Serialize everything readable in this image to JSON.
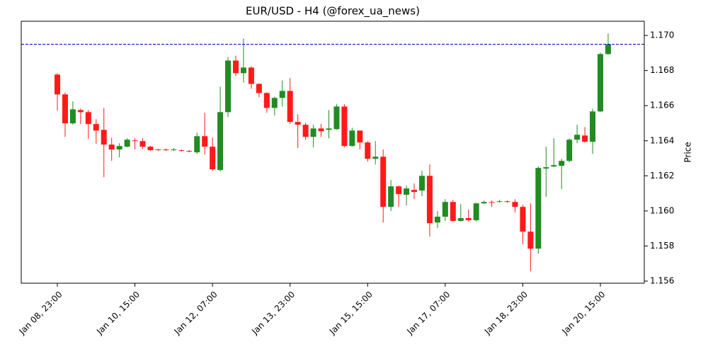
{
  "chart_data": {
    "type": "candlestick",
    "title": "EUR/USD - H4 (@forex_ua_news)",
    "ylabel": "Price",
    "y_axis_side": "right",
    "categories": [
      "Jan 08, 23:00",
      null,
      null,
      null,
      null,
      null,
      null,
      null,
      null,
      null,
      "Jan 10, 15:00",
      null,
      null,
      null,
      null,
      null,
      null,
      null,
      null,
      null,
      "Jan 12, 07:00",
      null,
      null,
      null,
      null,
      null,
      null,
      null,
      null,
      null,
      "Jan 13, 23:00",
      null,
      null,
      null,
      null,
      null,
      null,
      null,
      null,
      null,
      "Jan 15, 15:00",
      null,
      null,
      null,
      null,
      null,
      null,
      null,
      null,
      null,
      "Jan 17, 07:00",
      null,
      null,
      null,
      null,
      null,
      null,
      null,
      null,
      null,
      "Jan 18, 23:00",
      null,
      null,
      null,
      null,
      null,
      null,
      null,
      null,
      null,
      "Jan 20, 15:00",
      null
    ],
    "open": [
      1.16777,
      1.16664,
      1.16499,
      1.16575,
      1.16563,
      1.16495,
      1.16462,
      1.16378,
      1.1635,
      1.16366,
      1.16402,
      1.16398,
      1.16366,
      1.1635,
      1.1635,
      1.16346,
      1.16346,
      1.16342,
      1.16334,
      1.16426,
      1.16366,
      1.16233,
      1.16563,
      1.16857,
      1.16785,
      1.16817,
      1.16724,
      1.16672,
      1.16587,
      1.16644,
      1.16684,
      1.16507,
      1.16491,
      1.16422,
      1.1647,
      1.16462,
      1.16466,
      1.16595,
      1.1637,
      1.16458,
      1.1639,
      1.16297,
      1.16309,
      1.16023,
      1.1614,
      1.16092,
      1.1612,
      1.16116,
      1.162,
      1.15934,
      1.15967,
      1.16051,
      1.15943,
      1.15959,
      1.15947,
      1.16043,
      1.16051,
      1.16051,
      1.16055,
      1.16051,
      1.16023,
      1.15882,
      1.15785,
      1.16241,
      1.16253,
      1.16257,
      1.16285,
      1.16406,
      1.1643,
      1.16394,
      1.16567,
      1.16894
    ],
    "high": [
      1.16785,
      1.16676,
      1.16624,
      1.16583,
      1.16575,
      1.16523,
      1.16587,
      1.16418,
      1.16386,
      1.16414,
      1.16414,
      1.16414,
      1.1637,
      1.16354,
      1.16354,
      1.16358,
      1.1635,
      1.16346,
      1.16446,
      1.16559,
      1.16418,
      1.16708,
      1.16877,
      1.16885,
      1.16982,
      1.16825,
      1.16728,
      1.16676,
      1.16652,
      1.16744,
      1.16757,
      1.16551,
      1.16503,
      1.16491,
      1.16495,
      1.16575,
      1.16608,
      1.16608,
      1.16474,
      1.16458,
      1.16398,
      1.16398,
      1.1635,
      1.16176,
      1.16144,
      1.16144,
      1.16156,
      1.16229,
      1.16265,
      1.15999,
      1.16067,
      1.16063,
      1.16039,
      1.16007,
      1.16047,
      1.16059,
      1.16059,
      1.16063,
      1.16059,
      1.16067,
      1.16035,
      1.16043,
      1.16253,
      1.16366,
      1.16414,
      1.16297,
      1.16414,
      1.16491,
      1.16478,
      1.16583,
      1.16902,
      1.17011
    ],
    "low": [
      1.16571,
      1.16422,
      1.16491,
      1.16495,
      1.1641,
      1.16382,
      1.16192,
      1.16285,
      1.16305,
      1.16362,
      1.1635,
      1.16354,
      1.16342,
      1.16342,
      1.16342,
      1.16342,
      1.16338,
      1.16334,
      1.16325,
      1.16321,
      1.16229,
      1.16225,
      1.16535,
      1.16769,
      1.16732,
      1.16696,
      1.16648,
      1.16559,
      1.16543,
      1.16595,
      1.16495,
      1.16358,
      1.16406,
      1.16362,
      1.16422,
      1.16414,
      1.16462,
      1.16362,
      1.16366,
      1.1635,
      1.16281,
      1.16265,
      1.15934,
      1.15999,
      1.16023,
      1.16031,
      1.16067,
      1.16084,
      1.15854,
      1.15902,
      1.15943,
      1.15939,
      1.15939,
      1.15939,
      1.15939,
      1.16039,
      1.16023,
      1.16047,
      1.16047,
      1.15991,
      1.1581,
      1.15656,
      1.15757,
      1.1608,
      1.16249,
      1.16124,
      1.16277,
      1.16386,
      1.1639,
      1.16325,
      1.16563,
      1.1689
    ],
    "close": [
      1.16664,
      1.16499,
      1.16579,
      1.16563,
      1.16495,
      1.16458,
      1.16378,
      1.1635,
      1.1637,
      1.16406,
      1.16398,
      1.16366,
      1.16346,
      1.16346,
      1.16346,
      1.1635,
      1.16342,
      1.16338,
      1.16426,
      1.16366,
      1.16237,
      1.16563,
      1.16857,
      1.16785,
      1.16817,
      1.16724,
      1.16672,
      1.16587,
      1.16644,
      1.16684,
      1.16507,
      1.16491,
      1.16422,
      1.1647,
      1.16454,
      1.1647,
      1.16595,
      1.1637,
      1.16458,
      1.1639,
      1.16297,
      1.16309,
      1.16023,
      1.1614,
      1.16096,
      1.16128,
      1.16108,
      1.162,
      1.1593,
      1.15967,
      1.16051,
      1.15943,
      1.15959,
      1.15947,
      1.16043,
      1.16051,
      1.16047,
      1.16055,
      1.16051,
      1.16023,
      1.15882,
      1.15785,
      1.16245,
      1.16249,
      1.16261,
      1.16285,
      1.16406,
      1.16434,
      1.16394,
      1.16567,
      1.16894,
      1.1695
    ],
    "up_color": "#228b22",
    "down_color": "#ff1a1a",
    "hline": {
      "value": 1.1695,
      "color": "#0000cc"
    },
    "ylim": [
      1.15588,
      1.17081
    ],
    "yticks": [
      1.156,
      1.158,
      {
        "value": 1.16,
        "label": "1.160"
      },
      1.162,
      1.164,
      1.166,
      1.168,
      {
        "value": 1.17,
        "label": "1.170"
      }
    ]
  }
}
